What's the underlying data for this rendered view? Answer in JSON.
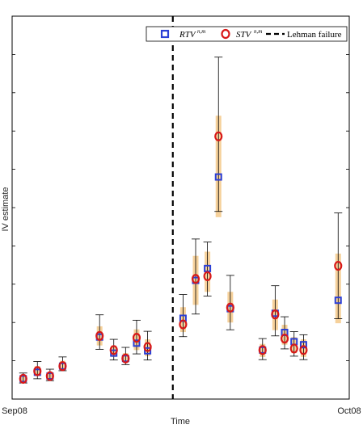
{
  "chart_data": {
    "type": "scatter",
    "xlabel": "Time",
    "ylabel": "IV estimate",
    "x_tick_labels": [
      "Sep08",
      "Oct08"
    ],
    "xlim": [
      0,
      42
    ],
    "ylim": [
      0,
      100
    ],
    "grid": false,
    "legend_position": "top-right",
    "legend": {
      "series1_label": "RTV",
      "series1_superscript": "n,m",
      "series2_label": "STV",
      "series2_superscript": "n,m",
      "vline_label": "Lehman failure"
    },
    "colors": {
      "rtv": "#2b3fd6",
      "stv": "#d81818",
      "band": "#f5c98a",
      "errorbar": "#000000",
      "vline": "#000000"
    },
    "vline_x": 20,
    "points": [
      {
        "x": 1,
        "rtv": 5.3,
        "stv": 5.3,
        "lo": 4.2,
        "hi": 6.8,
        "band_lo": 4.6,
        "band_hi": 6.0
      },
      {
        "x": 2.8,
        "rtv": 7.0,
        "stv": 7.3,
        "lo": 5.3,
        "hi": 9.8,
        "band_lo": 6.0,
        "band_hi": 8.6
      },
      {
        "x": 4.4,
        "rtv": 6.0,
        "stv": 6.0,
        "lo": 4.8,
        "hi": 7.8,
        "band_lo": 5.3,
        "band_hi": 6.9
      },
      {
        "x": 6.0,
        "rtv": 8.6,
        "stv": 8.6,
        "lo": 7.4,
        "hi": 11.0,
        "band_lo": 7.8,
        "band_hi": 10.0
      },
      {
        "x": 10.7,
        "rtv": 16.2,
        "stv": 16.5,
        "lo": 13.0,
        "hi": 22.0,
        "band_lo": 14.0,
        "band_hi": 19.0
      },
      {
        "x": 12.5,
        "rtv": 12.0,
        "stv": 12.8,
        "lo": 10.2,
        "hi": 15.6,
        "band_lo": 11.0,
        "band_hi": 14.0
      },
      {
        "x": 14.0,
        "rtv": 10.6,
        "stv": 10.6,
        "lo": 9.0,
        "hi": 13.5,
        "band_lo": 9.8,
        "band_hi": 12.0
      },
      {
        "x": 15.4,
        "rtv": 14.6,
        "stv": 16.0,
        "lo": 11.8,
        "hi": 20.6,
        "band_lo": 12.8,
        "band_hi": 18.2
      },
      {
        "x": 16.8,
        "rtv": 12.6,
        "stv": 13.6,
        "lo": 10.2,
        "hi": 17.7,
        "band_lo": 11.2,
        "band_hi": 15.6
      },
      {
        "x": 21.3,
        "rtv": 21.1,
        "stv": 19.5,
        "lo": 16.3,
        "hi": 27.3,
        "band_lo": 17.5,
        "band_hi": 24.0
      },
      {
        "x": 22.9,
        "rtv": 31.0,
        "stv": 31.4,
        "lo": 22.2,
        "hi": 41.8,
        "band_lo": 24.6,
        "band_hi": 37.4
      },
      {
        "x": 24.4,
        "rtv": 34.1,
        "stv": 32.1,
        "lo": 26.9,
        "hi": 41.0,
        "band_lo": 28.0,
        "band_hi": 38.5
      },
      {
        "x": 25.8,
        "rtv": 58.0,
        "stv": 68.6,
        "lo": 49.0,
        "hi": 89.3,
        "band_lo": 47.5,
        "band_hi": 74.0
      },
      {
        "x": 27.3,
        "rtv": 23.6,
        "stv": 23.9,
        "lo": 18.1,
        "hi": 32.3,
        "band_lo": 20.0,
        "band_hi": 28.0
      },
      {
        "x": 31.4,
        "rtv": 12.8,
        "stv": 12.8,
        "lo": 10.3,
        "hi": 15.8,
        "band_lo": 11.0,
        "band_hi": 14.4
      },
      {
        "x": 33.0,
        "rtv": 22.4,
        "stv": 22.1,
        "lo": 16.5,
        "hi": 29.6,
        "band_lo": 18.0,
        "band_hi": 26.0
      },
      {
        "x": 34.2,
        "rtv": 17.4,
        "stv": 15.8,
        "lo": 13.1,
        "hi": 21.5,
        "band_lo": 14.2,
        "band_hi": 19.4
      },
      {
        "x": 35.4,
        "rtv": 15.0,
        "stv": 13.2,
        "lo": 11.2,
        "hi": 17.6,
        "band_lo": 12.0,
        "band_hi": 16.2
      },
      {
        "x": 36.6,
        "rtv": 14.2,
        "stv": 12.8,
        "lo": 10.3,
        "hi": 16.8,
        "band_lo": 11.0,
        "band_hi": 15.6
      },
      {
        "x": 41.0,
        "rtv": 25.8,
        "stv": 34.8,
        "lo": 21.0,
        "hi": 48.6,
        "band_lo": 19.8,
        "band_hi": 38.0
      }
    ]
  }
}
